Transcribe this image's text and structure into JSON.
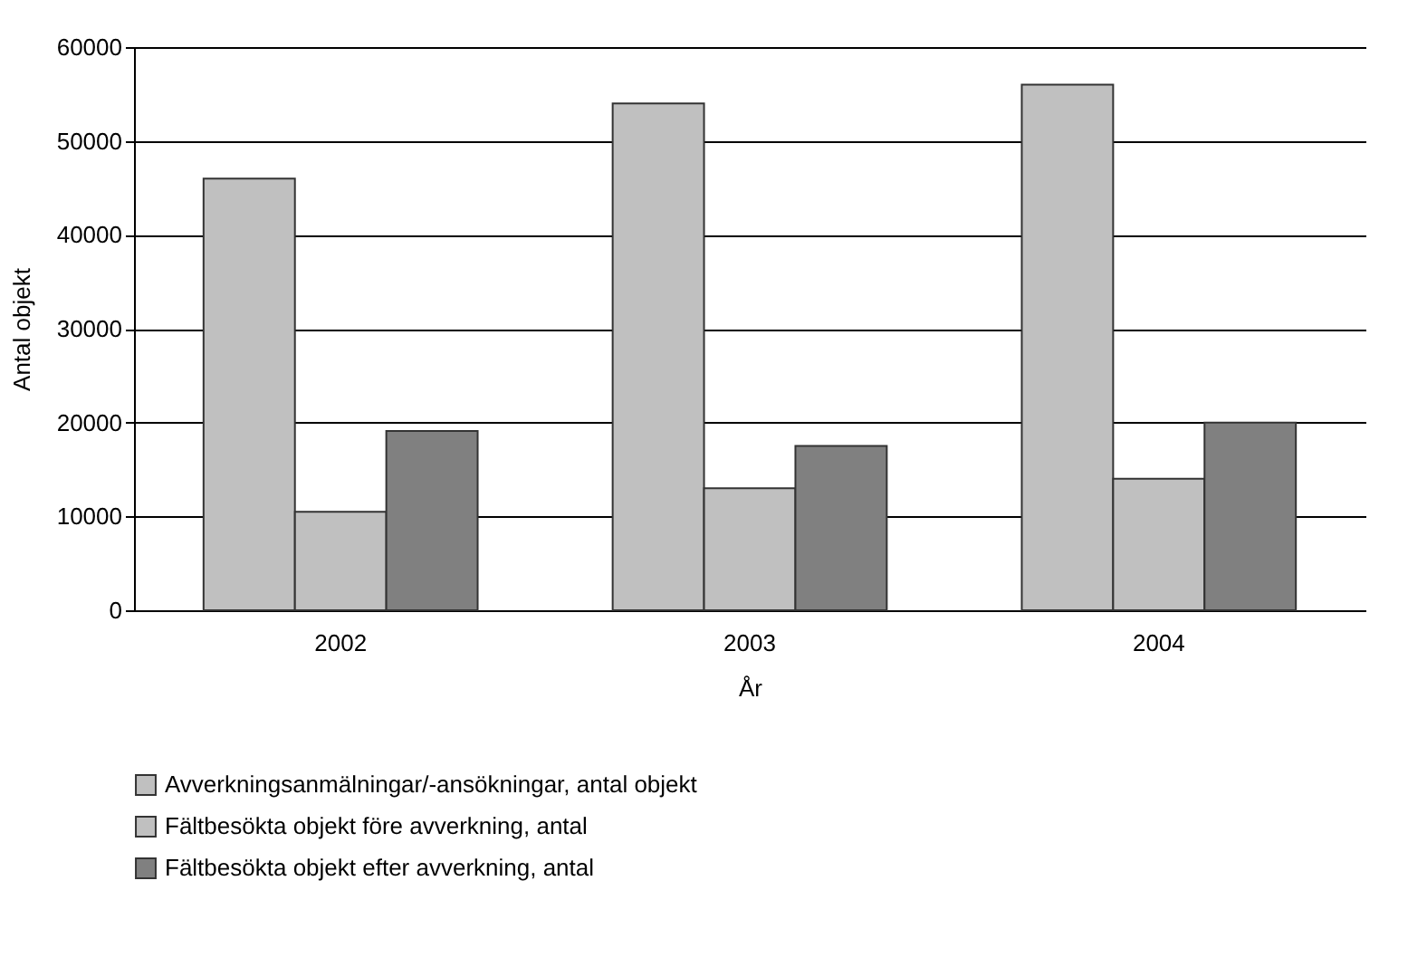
{
  "chart_data": {
    "type": "bar",
    "xlabel": "År",
    "ylabel": "Antal objekt",
    "categories": [
      "2002",
      "2003",
      "2004"
    ],
    "series": [
      {
        "name": "Avverkningsanmälningar/-ansökningar, antal objekt",
        "color": "#c0c0c0",
        "values": [
          46000,
          54000,
          56000
        ]
      },
      {
        "name": "Fältbesökta objekt före avverkning, antal",
        "color": "#c0c0c0",
        "values": [
          10500,
          13000,
          14000
        ]
      },
      {
        "name": "Fältbesökta objekt efter avverkning, antal",
        "color": "#808080",
        "values": [
          19100,
          17500,
          20000
        ]
      }
    ],
    "ylim": [
      0,
      60000
    ],
    "yticks": [
      0,
      10000,
      20000,
      30000,
      40000,
      50000,
      60000
    ],
    "grid": "y",
    "legend": "bottom"
  }
}
